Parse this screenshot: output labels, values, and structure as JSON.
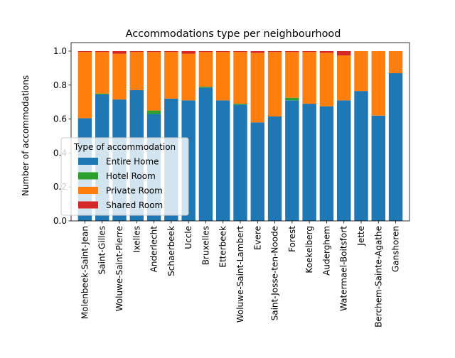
{
  "chart_data": {
    "type": "bar",
    "stacked": true,
    "title": "Accommodations type per neighbourhood",
    "xlabel": "",
    "ylabel": "Number of accommodations",
    "ylim": [
      0,
      1.05
    ],
    "yticks": [
      "0.0",
      "0.2",
      "0.4",
      "0.6",
      "0.8",
      "1.0"
    ],
    "grid": false,
    "legend_title": "Type of accommodation",
    "legend_position": "center-left",
    "categories": [
      "Molenbeek-Saint-Jean",
      "Saint-Gilles",
      "Woluwe-Saint-Pierre",
      "Ixelles",
      "Anderlecht",
      "Schaerbeek",
      "Uccle",
      "Bruxelles",
      "Etterbeek",
      "Woluwe-Saint-Lambert",
      "Evere",
      "Saint-Josse-ten-Noode",
      "Forest",
      "Koekelberg",
      "Auderghem",
      "Watermael-Boitsfort",
      "Jette",
      "Berchem-Sainte-Agathe",
      "Ganshoren"
    ],
    "series": [
      {
        "name": "Entire Home",
        "color": "#1f77b4",
        "values": [
          0.605,
          0.745,
          0.715,
          0.77,
          0.63,
          0.72,
          0.71,
          0.785,
          0.71,
          0.685,
          0.58,
          0.615,
          0.71,
          0.69,
          0.675,
          0.71,
          0.765,
          0.62,
          0.87
        ]
      },
      {
        "name": "Hotel Room",
        "color": "#2ca02c",
        "values": [
          0.0,
          0.005,
          0.0,
          0.0,
          0.02,
          0.0,
          0.0,
          0.005,
          0.0,
          0.005,
          0.0,
          0.0,
          0.015,
          0.0,
          0.0,
          0.0,
          0.0,
          0.0,
          0.0
        ]
      },
      {
        "name": "Private Room",
        "color": "#ff7f0e",
        "values": [
          0.39,
          0.245,
          0.27,
          0.225,
          0.345,
          0.275,
          0.275,
          0.205,
          0.285,
          0.305,
          0.41,
          0.38,
          0.27,
          0.305,
          0.315,
          0.265,
          0.235,
          0.38,
          0.13
        ]
      },
      {
        "name": "Shared Room",
        "color": "#d62728",
        "values": [
          0.005,
          0.005,
          0.015,
          0.005,
          0.005,
          0.005,
          0.015,
          0.005,
          0.005,
          0.005,
          0.01,
          0.005,
          0.005,
          0.005,
          0.01,
          0.025,
          0.0,
          0.0,
          0.0
        ]
      }
    ]
  }
}
